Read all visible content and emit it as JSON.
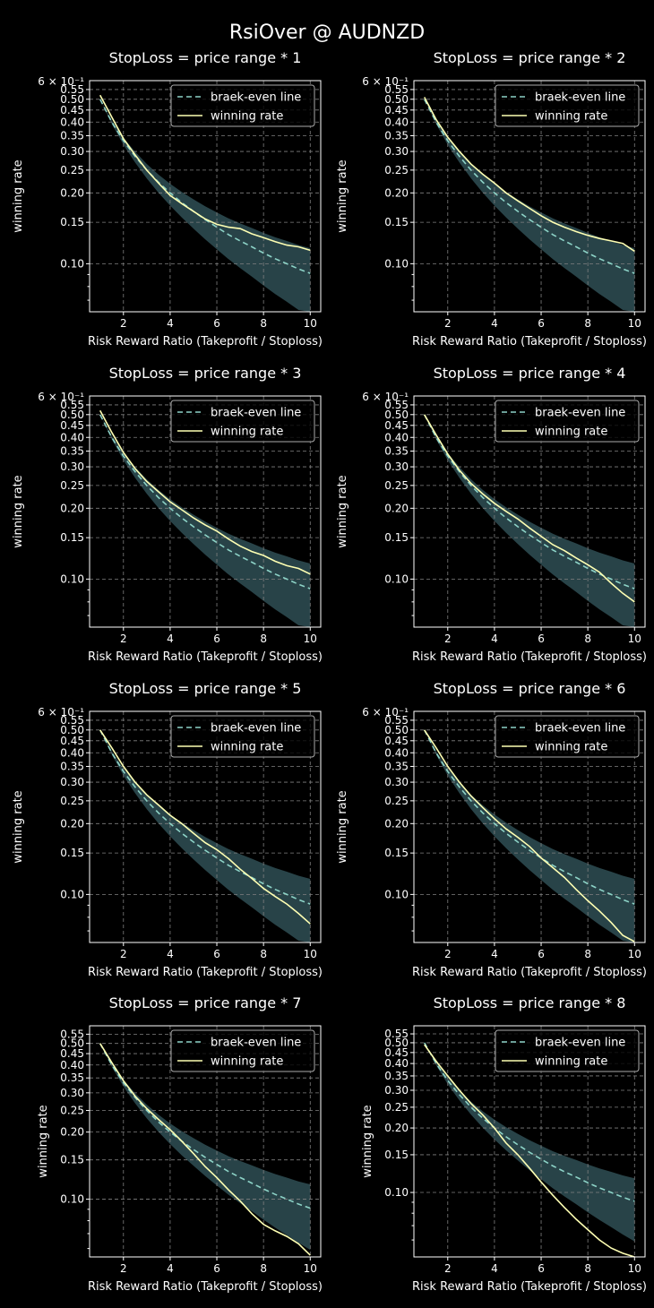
{
  "suptitle": "RsiOver @ AUDNZD",
  "colors": {
    "background": "#000000",
    "axes": "#ffffff",
    "grid": "#808080",
    "breakeven": "#8dd3c7",
    "winning": "#feffb3",
    "band": "#2f4f55"
  },
  "charts_common": {
    "xlabel": "Risk Reward Ratio (Takeprofit / Stoploss)",
    "ylabel": "winning rate",
    "legend": [
      "braek-even line",
      "winning rate"
    ],
    "legend_position": "top-right",
    "x_ticks": [
      2,
      4,
      6,
      8,
      10
    ],
    "x_range": [
      0.55,
      10.45
    ],
    "y_scale": "log",
    "y_tick_labels": [
      "0.10",
      "0.15",
      "0.20",
      "0.25",
      "0.30",
      "0.35",
      "0.40",
      "0.45",
      "0.50",
      "0.55"
    ],
    "y_top_label": "6 × 10⁻¹",
    "grid": true
  },
  "chart_data": [
    {
      "type": "line",
      "title": "StopLoss = price range * 1",
      "ylim": [
        0.0625,
        0.6
      ],
      "show_top_label": true,
      "x": [
        1,
        1.5,
        2,
        2.5,
        3,
        3.5,
        4,
        4.5,
        5,
        5.5,
        6,
        6.5,
        7,
        7.5,
        8,
        8.5,
        9,
        9.5,
        10
      ],
      "series": [
        {
          "name": "braek-even line",
          "values": [
            0.5,
            0.4,
            0.333,
            0.286,
            0.25,
            0.222,
            0.2,
            0.182,
            0.167,
            0.154,
            0.143,
            0.133,
            0.125,
            0.118,
            0.111,
            0.105,
            0.1,
            0.095,
            0.091
          ]
        },
        {
          "name": "winning rate",
          "values": [
            0.52,
            0.42,
            0.34,
            0.29,
            0.25,
            0.22,
            0.195,
            0.18,
            0.167,
            0.155,
            0.147,
            0.143,
            0.141,
            0.134,
            0.129,
            0.124,
            0.12,
            0.118,
            0.114
          ]
        }
      ]
    },
    {
      "type": "line",
      "title": "StopLoss = price range * 2",
      "ylim": [
        0.0625,
        0.6
      ],
      "show_top_label": true,
      "x": [
        1,
        1.5,
        2,
        2.5,
        3,
        3.5,
        4,
        4.5,
        5,
        5.5,
        6,
        6.5,
        7,
        7.5,
        8,
        8.5,
        9,
        9.5,
        10
      ],
      "series": [
        {
          "name": "braek-even line",
          "values": [
            0.5,
            0.4,
            0.333,
            0.286,
            0.25,
            0.222,
            0.2,
            0.182,
            0.167,
            0.154,
            0.143,
            0.133,
            0.125,
            0.118,
            0.111,
            0.105,
            0.1,
            0.095,
            0.091
          ]
        },
        {
          "name": "winning rate",
          "values": [
            0.51,
            0.41,
            0.345,
            0.3,
            0.265,
            0.24,
            0.22,
            0.2,
            0.185,
            0.172,
            0.16,
            0.15,
            0.143,
            0.137,
            0.132,
            0.128,
            0.125,
            0.122,
            0.113
          ]
        }
      ]
    },
    {
      "type": "line",
      "title": "StopLoss = price range * 3",
      "ylim": [
        0.0625,
        0.6
      ],
      "show_top_label": true,
      "x": [
        1,
        1.5,
        2,
        2.5,
        3,
        3.5,
        4,
        4.5,
        5,
        5.5,
        6,
        6.5,
        7,
        7.5,
        8,
        8.5,
        9,
        9.5,
        10
      ],
      "series": [
        {
          "name": "braek-even line",
          "values": [
            0.5,
            0.4,
            0.333,
            0.286,
            0.25,
            0.222,
            0.2,
            0.182,
            0.167,
            0.154,
            0.143,
            0.133,
            0.125,
            0.118,
            0.111,
            0.105,
            0.1,
            0.095,
            0.091
          ]
        },
        {
          "name": "winning rate",
          "values": [
            0.52,
            0.42,
            0.345,
            0.295,
            0.26,
            0.235,
            0.213,
            0.197,
            0.182,
            0.17,
            0.16,
            0.148,
            0.138,
            0.131,
            0.126,
            0.119,
            0.114,
            0.111,
            0.105
          ]
        }
      ]
    },
    {
      "type": "line",
      "title": "StopLoss = price range * 4",
      "ylim": [
        0.0625,
        0.6
      ],
      "show_top_label": true,
      "x": [
        1,
        1.5,
        2,
        2.5,
        3,
        3.5,
        4,
        4.5,
        5,
        5.5,
        6,
        6.5,
        7,
        7.5,
        8,
        8.5,
        9,
        9.5,
        10
      ],
      "series": [
        {
          "name": "braek-even line",
          "values": [
            0.5,
            0.4,
            0.333,
            0.286,
            0.25,
            0.222,
            0.2,
            0.182,
            0.167,
            0.154,
            0.143,
            0.133,
            0.125,
            0.118,
            0.111,
            0.105,
            0.1,
            0.095,
            0.091
          ]
        },
        {
          "name": "winning rate",
          "values": [
            0.5,
            0.41,
            0.34,
            0.29,
            0.255,
            0.23,
            0.21,
            0.194,
            0.18,
            0.165,
            0.152,
            0.14,
            0.132,
            0.123,
            0.115,
            0.107,
            0.096,
            0.087,
            0.08
          ]
        }
      ]
    },
    {
      "type": "line",
      "title": "StopLoss = price range * 5",
      "ylim": [
        0.0625,
        0.6
      ],
      "show_top_label": true,
      "x": [
        1,
        1.5,
        2,
        2.5,
        3,
        3.5,
        4,
        4.5,
        5,
        5.5,
        6,
        6.5,
        7,
        7.5,
        8,
        8.5,
        9,
        9.5,
        10
      ],
      "series": [
        {
          "name": "braek-even line",
          "values": [
            0.5,
            0.4,
            0.333,
            0.286,
            0.25,
            0.222,
            0.2,
            0.182,
            0.167,
            0.154,
            0.143,
            0.133,
            0.125,
            0.118,
            0.111,
            0.105,
            0.1,
            0.095,
            0.091
          ]
        },
        {
          "name": "winning rate",
          "values": [
            0.5,
            0.42,
            0.35,
            0.3,
            0.265,
            0.24,
            0.217,
            0.2,
            0.182,
            0.166,
            0.155,
            0.142,
            0.128,
            0.117,
            0.106,
            0.098,
            0.091,
            0.083,
            0.075
          ]
        }
      ]
    },
    {
      "type": "line",
      "title": "StopLoss = price range * 6",
      "ylim": [
        0.0625,
        0.6
      ],
      "show_top_label": true,
      "x": [
        1,
        1.5,
        2,
        2.5,
        3,
        3.5,
        4,
        4.5,
        5,
        5.5,
        6,
        6.5,
        7,
        7.5,
        8,
        8.5,
        9,
        9.5,
        10
      ],
      "series": [
        {
          "name": "braek-even line",
          "values": [
            0.5,
            0.4,
            0.333,
            0.286,
            0.25,
            0.222,
            0.2,
            0.182,
            0.167,
            0.154,
            0.143,
            0.133,
            0.125,
            0.118,
            0.111,
            0.105,
            0.1,
            0.095,
            0.091
          ]
        },
        {
          "name": "winning rate",
          "values": [
            0.5,
            0.42,
            0.35,
            0.3,
            0.262,
            0.234,
            0.21,
            0.19,
            0.175,
            0.16,
            0.143,
            0.13,
            0.118,
            0.105,
            0.094,
            0.085,
            0.076,
            0.067,
            0.063
          ]
        }
      ]
    },
    {
      "type": "line",
      "title": "StopLoss = price range * 7",
      "ylim": [
        0.055,
        0.6
      ],
      "show_top_label": false,
      "x": [
        1,
        1.5,
        2,
        2.5,
        3,
        3.5,
        4,
        4.5,
        5,
        5.5,
        6,
        6.5,
        7,
        7.5,
        8,
        8.5,
        9,
        9.5,
        10
      ],
      "series": [
        {
          "name": "braek-even line",
          "values": [
            0.5,
            0.4,
            0.333,
            0.286,
            0.25,
            0.222,
            0.2,
            0.182,
            0.167,
            0.154,
            0.143,
            0.133,
            0.125,
            0.118,
            0.111,
            0.105,
            0.1,
            0.095,
            0.091
          ]
        },
        {
          "name": "winning rate",
          "values": [
            0.5,
            0.41,
            0.34,
            0.29,
            0.255,
            0.228,
            0.205,
            0.182,
            0.16,
            0.14,
            0.125,
            0.11,
            0.098,
            0.086,
            0.077,
            0.072,
            0.068,
            0.063,
            0.056
          ]
        }
      ]
    },
    {
      "type": "line",
      "title": "StopLoss = price range * 8",
      "ylim": [
        0.05,
        0.6
      ],
      "show_top_label": false,
      "x": [
        1,
        1.5,
        2,
        2.5,
        3,
        3.5,
        4,
        4.5,
        5,
        5.5,
        6,
        6.5,
        7,
        7.5,
        8,
        8.5,
        9,
        9.5,
        10
      ],
      "series": [
        {
          "name": "braek-even line",
          "values": [
            0.5,
            0.4,
            0.333,
            0.286,
            0.25,
            0.222,
            0.2,
            0.182,
            0.167,
            0.154,
            0.143,
            0.133,
            0.125,
            0.118,
            0.111,
            0.105,
            0.1,
            0.095,
            0.091
          ]
        },
        {
          "name": "winning rate",
          "values": [
            0.49,
            0.41,
            0.35,
            0.3,
            0.26,
            0.23,
            0.2,
            0.17,
            0.15,
            0.13,
            0.112,
            0.097,
            0.085,
            0.075,
            0.067,
            0.06,
            0.055,
            0.052,
            0.05
          ]
        }
      ]
    }
  ]
}
